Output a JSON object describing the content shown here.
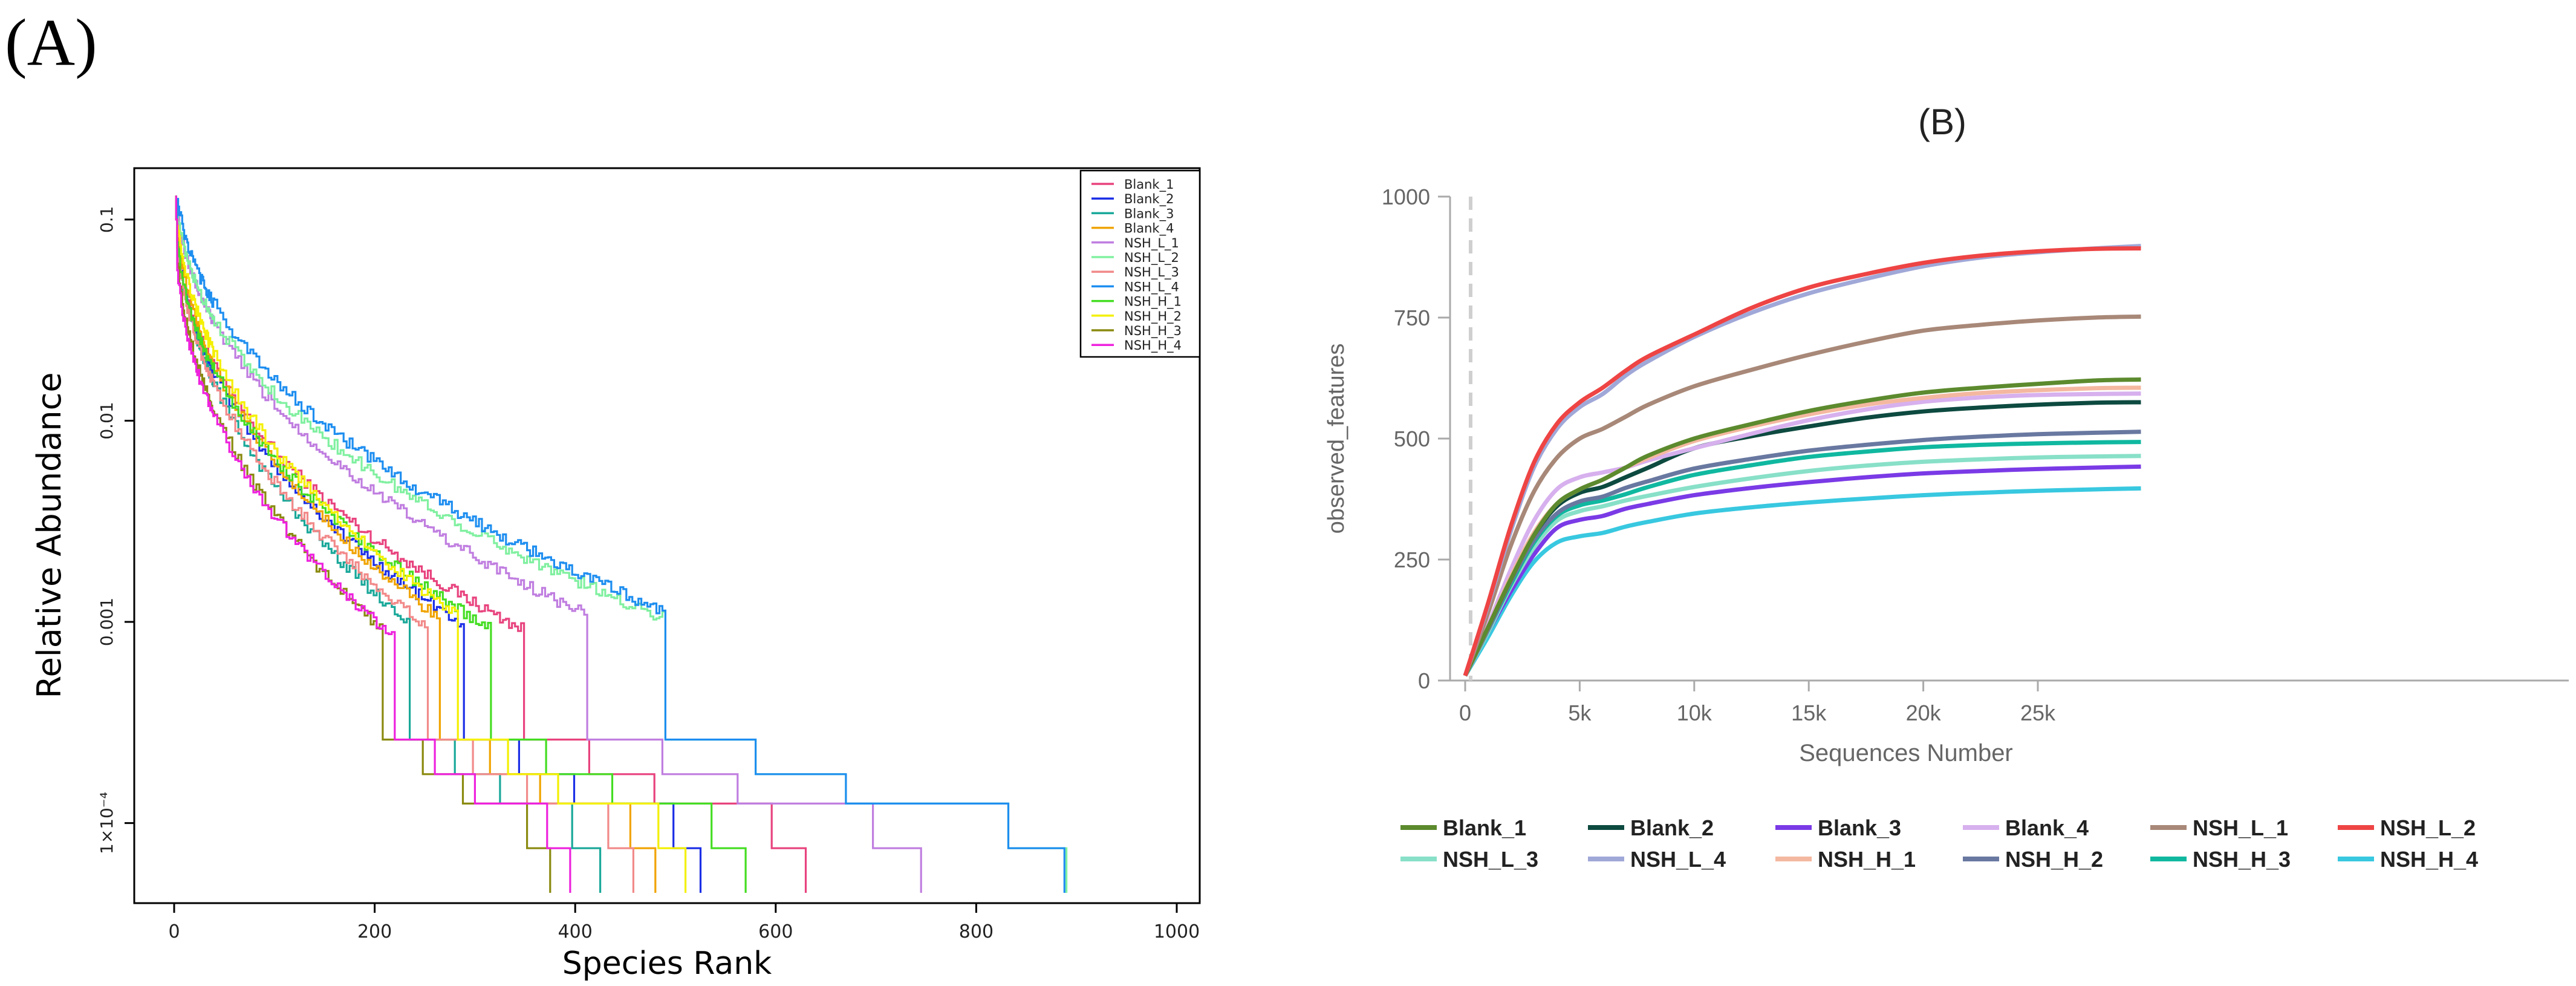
{
  "panel_a_label": "(A)",
  "panel_b_label": "(B)",
  "chart_data": [
    {
      "id": "A",
      "type": "line",
      "subtype": "rank-abundance",
      "title": "",
      "xlabel": "Species Rank",
      "ylabel": "Relative Abundance",
      "xlim": [
        0,
        1000
      ],
      "ylim": [
        4e-05,
        0.18
      ],
      "yscale": "log",
      "grid": false,
      "legend_position": "top-right",
      "xticks": [
        0,
        200,
        400,
        600,
        800,
        1000
      ],
      "xtick_labels": [
        "0",
        "200",
        "400",
        "600",
        "800",
        "1000"
      ],
      "yticks": [
        0.1,
        0.01,
        0.001,
        0.0001
      ],
      "ytick_labels": [
        "0.1",
        "0.01",
        "0.001",
        "1×10⁻⁴"
      ],
      "series": [
        {
          "name": "Blank_1",
          "color": "#e8437e",
          "max_rank": 630
        },
        {
          "name": "Blank_2",
          "color": "#1c2fe6",
          "max_rank": 525
        },
        {
          "name": "Blank_3",
          "color": "#1aa89a",
          "max_rank": 425
        },
        {
          "name": "Blank_4",
          "color": "#f0a400",
          "max_rank": 480
        },
        {
          "name": "NSH_L_1",
          "color": "#c07ee0",
          "max_rank": 745
        },
        {
          "name": "NSH_L_2",
          "color": "#80f0a0",
          "max_rank": 890
        },
        {
          "name": "NSH_L_3",
          "color": "#f28a8a",
          "max_rank": 458
        },
        {
          "name": "NSH_L_4",
          "color": "#1e8ef0",
          "max_rank": 888
        },
        {
          "name": "NSH_H_1",
          "color": "#44dd22",
          "max_rank": 570
        },
        {
          "name": "NSH_H_2",
          "color": "#f4f000",
          "max_rank": 510
        },
        {
          "name": "NSH_H_3",
          "color": "#8a8a10",
          "max_rank": 375
        },
        {
          "name": "NSH_H_4",
          "color": "#ee22dd",
          "max_rank": 395
        }
      ]
    },
    {
      "id": "B",
      "type": "line",
      "subtype": "rarefaction",
      "title": "(B)",
      "xlabel": "Sequences Number",
      "ylabel": "observed_features",
      "xlim": [
        0,
        29500
      ],
      "ylim": [
        0,
        1000
      ],
      "grid": false,
      "legend_position": "bottom",
      "xticks": [
        0,
        5000,
        10000,
        15000,
        20000,
        25000
      ],
      "xtick_labels": [
        "0",
        "5k",
        "10k",
        "15k",
        "20k",
        "25k"
      ],
      "yticks": [
        0,
        250,
        500,
        750,
        1000
      ],
      "ytick_labels": [
        "0",
        "250",
        "500",
        "750",
        "1000"
      ],
      "x": [
        0,
        1000,
        2000,
        3000,
        4000,
        5000,
        6000,
        7000,
        8000,
        10000,
        12500,
        15000,
        17500,
        20000,
        22500,
        25000,
        27500,
        29500
      ],
      "series": [
        {
          "name": "Blank_1",
          "color": "#5c8a2e",
          "values": [
            10,
            110,
            210,
            300,
            365,
            395,
            415,
            440,
            465,
            500,
            530,
            557,
            578,
            595,
            605,
            613,
            620,
            622
          ]
        },
        {
          "name": "Blank_2",
          "color": "#0d4a40",
          "values": [
            10,
            110,
            210,
            300,
            360,
            388,
            400,
            420,
            440,
            480,
            505,
            525,
            543,
            556,
            564,
            570,
            574,
            575
          ]
        },
        {
          "name": "Blank_3",
          "color": "#7a3ae6",
          "values": [
            10,
            100,
            185,
            260,
            315,
            332,
            340,
            355,
            365,
            383,
            398,
            410,
            420,
            428,
            433,
            437,
            440,
            442
          ]
        },
        {
          "name": "Blank_4",
          "color": "#d7b0ee",
          "values": [
            10,
            115,
            230,
            330,
            395,
            420,
            430,
            440,
            455,
            480,
            510,
            538,
            560,
            576,
            585,
            590,
            592,
            593
          ]
        },
        {
          "name": "NSH_L_1",
          "color": "#a88878",
          "values": [
            10,
            140,
            280,
            390,
            460,
            500,
            520,
            545,
            570,
            608,
            642,
            673,
            700,
            723,
            735,
            744,
            750,
            752
          ]
        },
        {
          "name": "NSH_L_2",
          "color": "#ee4444",
          "values": [
            10,
            160,
            320,
            450,
            530,
            575,
            605,
            640,
            670,
            715,
            770,
            812,
            840,
            863,
            878,
            887,
            892,
            893
          ]
        },
        {
          "name": "NSH_L_3",
          "color": "#88e0c8",
          "values": [
            10,
            100,
            195,
            275,
            330,
            350,
            360,
            372,
            382,
            400,
            418,
            433,
            444,
            452,
            457,
            461,
            463,
            464
          ]
        },
        {
          "name": "NSH_L_4",
          "color": "#a0a8d8",
          "values": [
            10,
            155,
            310,
            440,
            520,
            565,
            592,
            630,
            660,
            710,
            760,
            800,
            830,
            856,
            874,
            885,
            893,
            898
          ]
        },
        {
          "name": "NSH_H_1",
          "color": "#f4b8a0",
          "values": [
            10,
            110,
            215,
            305,
            365,
            395,
            415,
            440,
            460,
            495,
            525,
            550,
            570,
            584,
            594,
            600,
            604,
            605
          ]
        },
        {
          "name": "NSH_H_2",
          "color": "#6878a0",
          "values": [
            10,
            105,
            205,
            290,
            345,
            370,
            380,
            398,
            412,
            438,
            458,
            475,
            487,
            497,
            504,
            509,
            512,
            514
          ]
        },
        {
          "name": "NSH_H_3",
          "color": "#10b8a0",
          "values": [
            10,
            105,
            200,
            285,
            340,
            362,
            372,
            385,
            400,
            425,
            445,
            462,
            473,
            482,
            487,
            490,
            492,
            493
          ]
        },
        {
          "name": "NSH_H_4",
          "color": "#38c8e0",
          "values": [
            10,
            90,
            175,
            245,
            285,
            298,
            305,
            318,
            328,
            345,
            358,
            368,
            376,
            383,
            388,
            392,
            395,
            397
          ]
        }
      ]
    }
  ]
}
